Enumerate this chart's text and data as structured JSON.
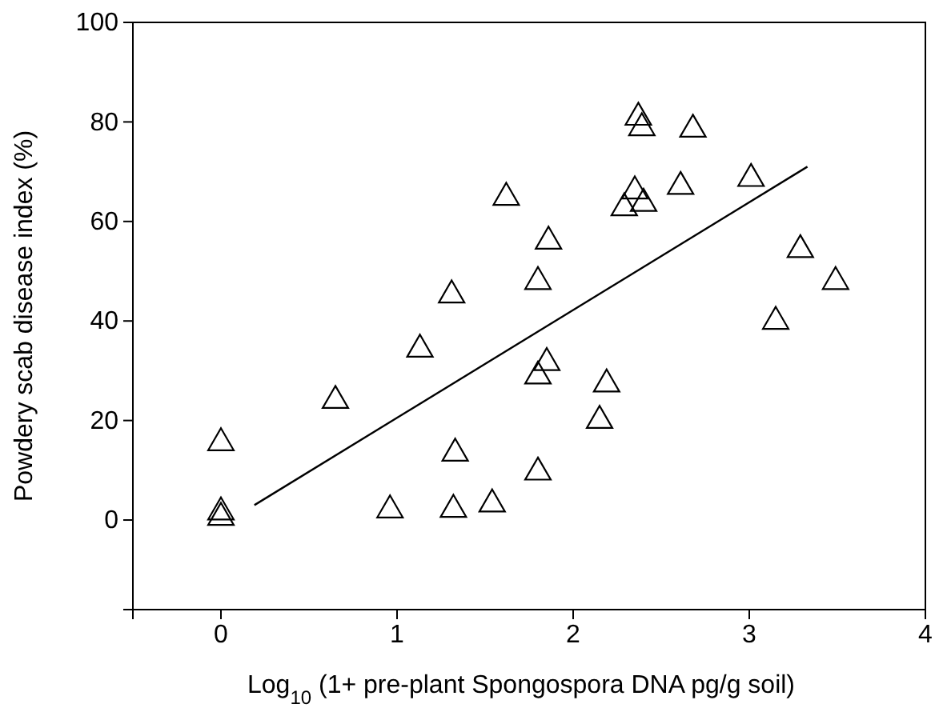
{
  "chart_data": {
    "type": "scatter",
    "xlabel": "Log$_{10}$ (1+ pre-plant Spongospora DNA pg/g soil)",
    "ylabel": "Powdery scab disease index (%)",
    "xlim": [
      -0.5,
      4
    ],
    "xticks": [
      0,
      1,
      2,
      3,
      4
    ],
    "ylim": [
      -18,
      100
    ],
    "yticks": [
      0,
      20,
      40,
      60,
      80,
      100
    ],
    "grid": false,
    "series": [
      {
        "color": "#000000",
        "marker": "triangle",
        "x": [
          0,
          0,
          0,
          0.65,
          1.13,
          1.31,
          1.33,
          1.32,
          0.96,
          1.54,
          1.62,
          1.86,
          1.8,
          1.85,
          1.8,
          1.8,
          2.19,
          2.15,
          2.37,
          2.39,
          2.68,
          2.35,
          2.29,
          2.4,
          2.61,
          3.01,
          3.29,
          3.49,
          3.15
        ],
        "values": [
          15.5,
          1.6,
          0.5,
          24,
          34.3,
          45.2,
          13.4,
          2.1,
          2,
          3.2,
          64.8,
          56,
          47.9,
          31.6,
          28.9,
          9.6,
          27.3,
          20,
          80.9,
          78.8,
          78.5,
          66.1,
          62.7,
          63.6,
          67,
          68.6,
          54.3,
          47.9,
          39.9
        ]
      },
      {
        "type": "line",
        "color": "#000000",
        "line_style": "solid",
        "x": [
          0.19,
          3.33
        ],
        "values": [
          3,
          71
        ]
      }
    ]
  }
}
